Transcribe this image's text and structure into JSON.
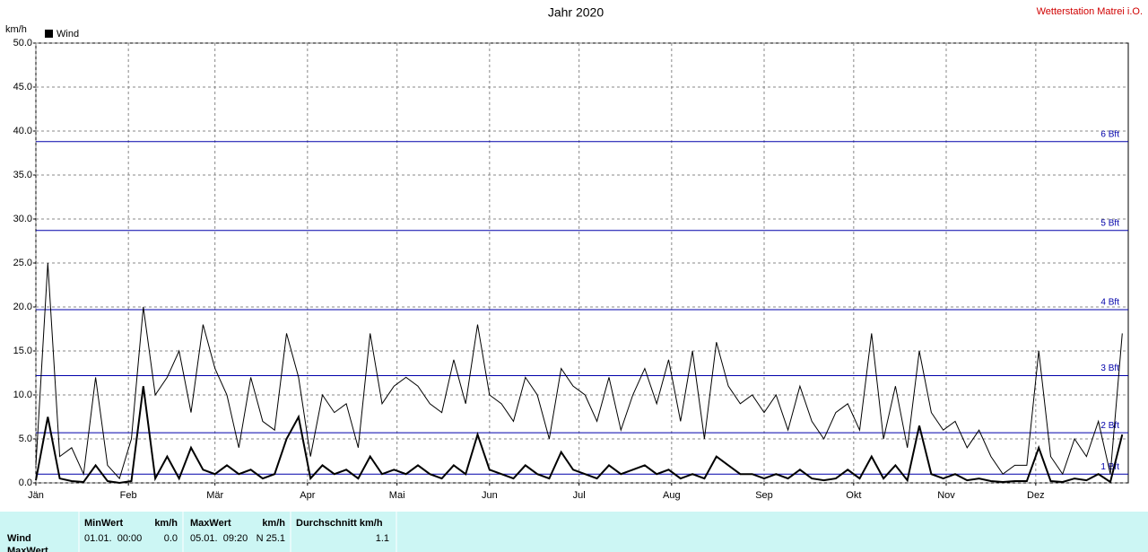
{
  "chart_data": {
    "type": "line",
    "title": "Jahr 2020",
    "station": "Wetterstation Matrei i.O.",
    "y_label": "km/h",
    "x": [
      0,
      4,
      8,
      12,
      16,
      20,
      24,
      28,
      32,
      36,
      40,
      44,
      48,
      52,
      56,
      60,
      64,
      68,
      72,
      76,
      80,
      84,
      88,
      92,
      96,
      100,
      104,
      108,
      112,
      116,
      120,
      124,
      128,
      132,
      136,
      140,
      144,
      148,
      152,
      156,
      160,
      164,
      168,
      172,
      176,
      180,
      184,
      188,
      192,
      196,
      200,
      204,
      208,
      212,
      216,
      220,
      224,
      228,
      232,
      236,
      240,
      244,
      248,
      252,
      256,
      260,
      264,
      268,
      272,
      276,
      280,
      284,
      288,
      292,
      296,
      300,
      304,
      308,
      312,
      316,
      320,
      324,
      328,
      332,
      336,
      340,
      344,
      348,
      352,
      356,
      360,
      364
    ],
    "series": [
      {
        "name": "Wind",
        "color": "#000000",
        "width": 2,
        "values": [
          0.3,
          7.5,
          0.5,
          0.2,
          0.1,
          2,
          0.2,
          0,
          0.2,
          11,
          0.5,
          3,
          0.5,
          4,
          1.5,
          1,
          2,
          1,
          1.5,
          0.5,
          1,
          5,
          7.5,
          0.5,
          2,
          1,
          1.5,
          0.5,
          3,
          1,
          1.5,
          1,
          2,
          1,
          0.5,
          2,
          1,
          5.5,
          1.5,
          1,
          0.5,
          2,
          1,
          0.5,
          3.5,
          1.5,
          1,
          0.5,
          2,
          1,
          1.5,
          2,
          1,
          1.5,
          0.5,
          1,
          0.5,
          3,
          2,
          1,
          1,
          0.5,
          1,
          0.5,
          1.5,
          0.5,
          0.3,
          0.5,
          1.5,
          0.5,
          3,
          0.5,
          2,
          0.3,
          6.5,
          1,
          0.5,
          1,
          0.3,
          0.5,
          0.2,
          0.1,
          0.2,
          0.2,
          4,
          0.2,
          0.1,
          0.5,
          0.3,
          1,
          0.1,
          5.5
        ]
      },
      {
        "color": "#000000",
        "width": 1,
        "values": [
          2,
          25,
          3,
          4,
          1,
          12,
          2,
          0.5,
          5,
          20,
          10,
          12,
          15,
          8,
          18,
          13,
          10,
          4,
          12,
          7,
          6,
          17,
          12,
          3,
          10,
          8,
          9,
          4,
          17,
          9,
          11,
          12,
          11,
          9,
          8,
          14,
          9,
          18,
          10,
          9,
          7,
          12,
          10,
          5,
          13,
          11,
          10,
          7,
          12,
          6,
          10,
          13,
          9,
          14,
          7,
          15,
          5,
          16,
          11,
          9,
          10,
          8,
          10,
          6,
          11,
          7,
          5,
          8,
          9,
          6,
          17,
          5,
          11,
          4,
          15,
          8,
          6,
          7,
          4,
          6,
          3,
          1,
          2,
          2,
          15,
          3,
          1,
          5,
          3,
          7,
          1,
          17
        ]
      }
    ],
    "xlim": [
      0,
      366
    ],
    "xticks": [
      {
        "value": 0,
        "label": "Jän"
      },
      {
        "value": 31,
        "label": "Feb"
      },
      {
        "value": 60,
        "label": "Mär"
      },
      {
        "value": 91,
        "label": "Apr"
      },
      {
        "value": 121,
        "label": "Mai"
      },
      {
        "value": 152,
        "label": "Jun"
      },
      {
        "value": 182,
        "label": "Jul"
      },
      {
        "value": 213,
        "label": "Aug"
      },
      {
        "value": 244,
        "label": "Sep"
      },
      {
        "value": 274,
        "label": "Okt"
      },
      {
        "value": 305,
        "label": "Nov"
      },
      {
        "value": 335,
        "label": "Dez"
      }
    ],
    "ylim": [
      0,
      50
    ],
    "yticks": [
      {
        "value": 0,
        "label": "0.0"
      },
      {
        "value": 5,
        "label": "5.0"
      },
      {
        "value": 10,
        "label": "10.0"
      },
      {
        "value": 15,
        "label": "15.0"
      },
      {
        "value": 20,
        "label": "20.0"
      },
      {
        "value": 25,
        "label": "25.0"
      },
      {
        "value": 30,
        "label": "30.0"
      },
      {
        "value": 35,
        "label": "35.0"
      },
      {
        "value": 40,
        "label": "40.0"
      },
      {
        "value": 45,
        "label": "45.0"
      },
      {
        "value": 50,
        "label": "50.0"
      }
    ],
    "grid": true,
    "reference_lines": [
      {
        "value": 1.0,
        "label": "1 Bft"
      },
      {
        "value": 5.7,
        "label": "2 Bft"
      },
      {
        "value": 12.2,
        "label": "3 Bft"
      },
      {
        "value": 19.7,
        "label": "4 Bft"
      },
      {
        "value": 28.7,
        "label": "5 Bft"
      },
      {
        "value": 38.8,
        "label": "6 Bft"
      }
    ],
    "reference_color": "#0000aa"
  },
  "table": {
    "header": [
      "MinWert",
      "km/h",
      "MaxWert",
      "km/h",
      "Durchschnitt km/h"
    ],
    "rows": [
      [
        "Wind",
        "01.01.  00:00",
        "0.0",
        "05.01.  09:20",
        "N 25.1",
        "1.1"
      ],
      [
        "MaxWert"
      ]
    ]
  }
}
